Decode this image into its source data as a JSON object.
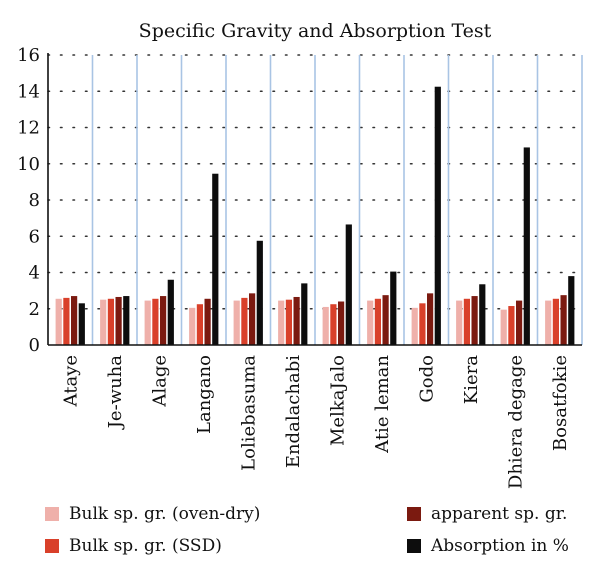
{
  "chart_data": {
    "type": "bar",
    "title": "Specific Gravity and Absorption Test",
    "xlabel": "",
    "ylabel": "",
    "ylim": [
      0,
      16
    ],
    "yticks": [
      0,
      2,
      4,
      6,
      8,
      10,
      12,
      14,
      16
    ],
    "grid": "dotted horizontal, solid vertical category separators",
    "legend_position": "bottom",
    "categories": [
      "Ataye",
      "Je-wuha",
      "Alage",
      "Langano",
      "Loliebasuma",
      "Endalachabi",
      "MelkaJalo",
      "Atie leman",
      "Godo",
      "Kiera",
      "Dhiera degage",
      "Bosatfokie"
    ],
    "series": [
      {
        "name": "Bulk sp. gr. (oven-dry)",
        "color": "#efb0aa",
        "values": [
          2.55,
          2.5,
          2.45,
          2.05,
          2.45,
          2.45,
          2.1,
          2.45,
          2.05,
          2.45,
          1.95,
          2.45
        ]
      },
      {
        "name": "Bulk sp. gr. (SSD)",
        "color": "#d9402a",
        "values": [
          2.6,
          2.55,
          2.55,
          2.25,
          2.6,
          2.5,
          2.25,
          2.55,
          2.3,
          2.55,
          2.15,
          2.55
        ]
      },
      {
        "name": "apparent sp. gr.",
        "color": "#7b1a10",
        "values": [
          2.7,
          2.65,
          2.7,
          2.55,
          2.85,
          2.65,
          2.4,
          2.75,
          2.85,
          2.7,
          2.45,
          2.75
        ]
      },
      {
        "name": "Absorption in %",
        "color": "#0d0d0d",
        "values": [
          2.3,
          2.7,
          3.6,
          9.45,
          5.75,
          3.4,
          6.65,
          4.05,
          14.25,
          3.35,
          10.9,
          3.8
        ]
      }
    ]
  }
}
